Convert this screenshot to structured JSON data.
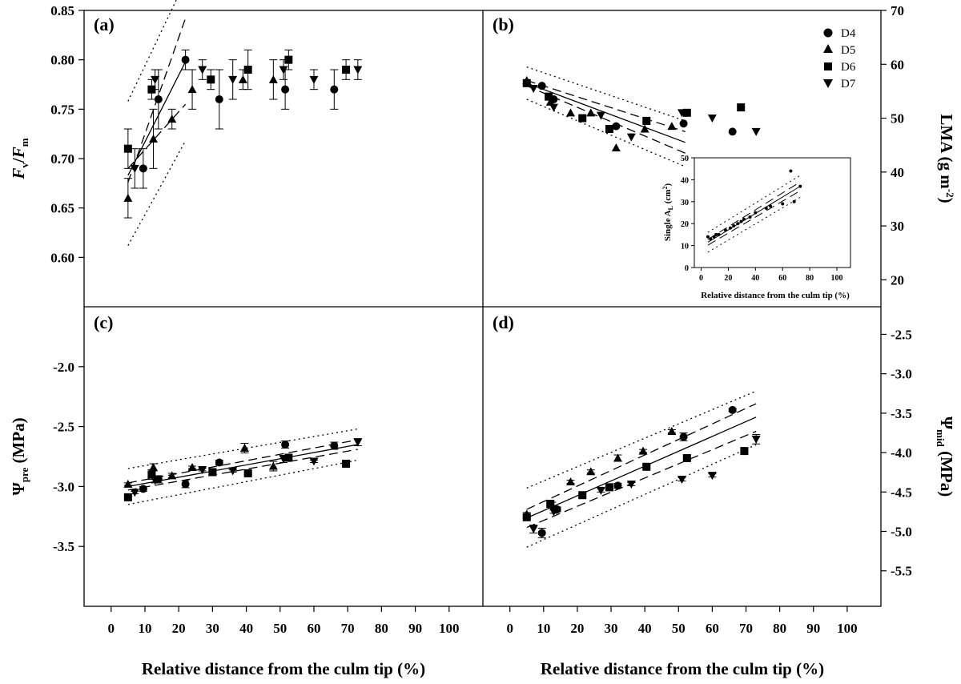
{
  "figure": {
    "x_axis_title": "Relative distance from the culm tip (%)",
    "x_ticks": [
      "0",
      "10",
      "20",
      "30",
      "40",
      "50",
      "60",
      "70",
      "80",
      "90",
      "100"
    ]
  },
  "panels": {
    "a": {
      "tag": "(a)"
    },
    "b": {
      "tag": "(b)"
    },
    "c": {
      "tag": "(c)"
    },
    "d": {
      "tag": "(d)"
    }
  },
  "legend": {
    "entries": [
      "D4",
      "D5",
      "D6",
      "D7"
    ],
    "placement": "top-right of panel (b)"
  },
  "chart_data": [
    {
      "panel": "a",
      "type": "scatter",
      "ylabel": {
        "main": "F",
        "sub": "v",
        "mid": "/",
        "main2": "F",
        "sub2": "m"
      },
      "xlim": [
        -8,
        110
      ],
      "ylim": [
        0.55,
        0.85
      ],
      "y_ticks": [
        "0.60",
        "0.65",
        "0.70",
        "0.75",
        "0.80",
        "0.85"
      ],
      "series": [
        {
          "name": "D4",
          "marker": "circle",
          "points": [
            [
              9.5,
              0.69,
              0.02
            ],
            [
              14,
              0.76,
              0.03
            ],
            [
              22,
              0.8,
              0.01
            ],
            [
              32,
              0.76,
              0.03
            ],
            [
              51.5,
              0.77,
              0.02
            ],
            [
              66,
              0.77,
              0.02
            ]
          ]
        },
        {
          "name": "D5",
          "marker": "triangle-up",
          "points": [
            [
              5,
              0.66,
              0.02
            ],
            [
              12.5,
              0.72,
              0.03
            ],
            [
              18,
              0.74,
              0.01
            ],
            [
              24,
              0.77,
              0.02
            ],
            [
              39,
              0.78,
              0.01
            ],
            [
              48,
              0.78,
              0.02
            ]
          ]
        },
        {
          "name": "D6",
          "marker": "square",
          "points": [
            [
              5,
              0.71,
              0.02
            ],
            [
              12,
              0.77,
              0.01
            ],
            [
              29.5,
              0.78,
              0.01
            ],
            [
              40.5,
              0.79,
              0.02
            ],
            [
              52.5,
              0.8,
              0.01
            ],
            [
              69.5,
              0.79,
              0.01
            ]
          ]
        },
        {
          "name": "D7",
          "marker": "triangle-down",
          "points": [
            [
              7,
              0.69,
              0.02
            ],
            [
              13,
              0.78,
              0.01
            ],
            [
              27,
              0.79,
              0.01
            ],
            [
              36,
              0.78,
              0.02
            ],
            [
              51,
              0.79,
              0.01
            ],
            [
              60,
              0.78,
              0.01
            ],
            [
              73,
              0.79,
              0.01
            ]
          ]
        }
      ],
      "fit": {
        "x": [
          5,
          22
        ],
        "y": [
          0.683,
          0.798
        ],
        "ci": [
          [
            0.69,
            0.755
          ],
          [
            0.676,
            0.842
          ]
        ],
        "pi": [
          [
            0.612,
            0.718
          ],
          [
            0.758,
            0.88
          ]
        ]
      }
    },
    {
      "panel": "b",
      "type": "scatter",
      "ylabel": {
        "main": "LMA (g m",
        "sup": "-2",
        "end": ")"
      },
      "y_side": "right",
      "xlim": [
        -8,
        110
      ],
      "ylim": [
        15,
        70
      ],
      "y_ticks": [
        "20",
        "30",
        "40",
        "50",
        "60",
        "70"
      ],
      "series": [
        {
          "name": "D4",
          "marker": "circle",
          "points": [
            [
              9.5,
              56
            ],
            [
              13,
              53.5
            ],
            [
              31.5,
              48.5
            ],
            [
              51.5,
              49
            ],
            [
              66,
              47.5
            ]
          ]
        },
        {
          "name": "D5",
          "marker": "triangle-up",
          "points": [
            [
              5,
              57
            ],
            [
              12,
              53
            ],
            [
              18,
              51
            ],
            [
              24,
              51
            ],
            [
              31.5,
              44.5
            ],
            [
              40,
              48
            ],
            [
              48,
              48.5
            ]
          ]
        },
        {
          "name": "D6",
          "marker": "square",
          "points": [
            [
              5,
              56.5
            ],
            [
              11.5,
              54
            ],
            [
              21.5,
              50
            ],
            [
              29.5,
              48
            ],
            [
              40.5,
              49.5
            ],
            [
              52.5,
              51
            ],
            [
              68.5,
              52
            ]
          ]
        },
        {
          "name": "D7",
          "marker": "triangle-down",
          "points": [
            [
              7,
              55.5
            ],
            [
              13,
              52
            ],
            [
              27,
              50.5
            ],
            [
              36,
              46.5
            ],
            [
              51,
              51
            ],
            [
              60,
              50
            ],
            [
              73,
              47.5
            ]
          ]
        }
      ],
      "fit": {
        "x": [
          5,
          52
        ],
        "y": [
          56.5,
          45.5
        ],
        "ci": [
          [
            57.0,
            47.5
          ],
          [
            56.0,
            43.5
          ]
        ],
        "pi": [
          [
            59.5,
            49.5
          ],
          [
            53.5,
            41.0
          ]
        ]
      },
      "inset": {
        "xlabel": "Relative distance from the culm tip (%)",
        "ylabel": {
          "main": "Single A",
          "sub": "L",
          "mid": " (cm",
          "sup": "2",
          "end": ")"
        },
        "x_ticks": [
          "0",
          "20",
          "40",
          "60",
          "80",
          "100"
        ],
        "y_ticks": [
          "0",
          "10",
          "20",
          "30",
          "40",
          "50"
        ],
        "xlim": [
          -5,
          110
        ],
        "ylim": [
          0,
          50
        ],
        "points": [
          [
            5,
            14
          ],
          [
            7,
            13
          ],
          [
            9.5,
            14
          ],
          [
            11,
            15
          ],
          [
            13,
            15
          ],
          [
            18,
            17
          ],
          [
            21.5,
            18
          ],
          [
            24,
            19
          ],
          [
            27,
            20
          ],
          [
            29.5,
            21
          ],
          [
            31.5,
            22
          ],
          [
            36,
            23
          ],
          [
            40,
            25
          ],
          [
            48,
            27
          ],
          [
            51,
            28
          ],
          [
            60,
            29
          ],
          [
            66,
            44
          ],
          [
            68.5,
            30
          ],
          [
            73,
            37
          ]
        ],
        "fit": {
          "x": [
            5,
            73
          ],
          "y": [
            11.5,
            37
          ],
          "ci": [
            [
              12.8,
              39
            ],
            [
              10.2,
              35
            ]
          ],
          "pi": [
            [
              16,
              42
            ],
            [
              7,
              32
            ]
          ]
        }
      }
    },
    {
      "panel": "c",
      "type": "scatter",
      "ylabel": {
        "main": "Ψ",
        "sub": "pre",
        "end": " (MPa)"
      },
      "xlim": [
        -8,
        110
      ],
      "ylim": [
        -4.0,
        -1.5
      ],
      "y_ticks": [
        "-2.0",
        "-2.5",
        "-3.0",
        "-3.5"
      ],
      "series": [
        {
          "name": "D4",
          "marker": "circle",
          "points": [
            [
              9.5,
              -3.02,
              0.02
            ],
            [
              14,
              -2.94,
              0.03
            ],
            [
              22,
              -2.98,
              0.03
            ],
            [
              32,
              -2.8,
              0.02
            ],
            [
              51.5,
              -2.65,
              0.03
            ],
            [
              66,
              -2.66,
              0.03
            ]
          ]
        },
        {
          "name": "D5",
          "marker": "triangle-up",
          "points": [
            [
              5,
              -2.98,
              0.01
            ],
            [
              12.5,
              -2.84,
              0.03
            ],
            [
              18,
              -2.91,
              0.02
            ],
            [
              24,
              -2.84,
              0.01
            ],
            [
              39.5,
              -2.68,
              0.04
            ],
            [
              48,
              -2.83,
              0.04
            ]
          ]
        },
        {
          "name": "D6",
          "marker": "square",
          "points": [
            [
              5,
              -3.09,
              0.02
            ],
            [
              12,
              -2.9,
              0.04
            ],
            [
              30,
              -2.88,
              0.02
            ],
            [
              40.5,
              -2.89,
              0.01
            ],
            [
              52.5,
              -2.76,
              0.02
            ],
            [
              69.5,
              -2.81,
              0.02
            ]
          ]
        },
        {
          "name": "D7",
          "marker": "triangle-down",
          "points": [
            [
              7,
              -3.05,
              0.01
            ],
            [
              13,
              -2.95,
              0.02
            ],
            [
              27,
              -2.86,
              0.01
            ],
            [
              36,
              -2.87,
              0.01
            ],
            [
              51,
              -2.77,
              0.03
            ],
            [
              60,
              -2.79,
              0.01
            ],
            [
              73,
              -2.63,
              0.03
            ]
          ]
        }
      ],
      "fit": {
        "x": [
          5,
          73
        ],
        "y": [
          -3.0,
          -2.65
        ],
        "ci": [
          [
            -2.97,
            -2.61
          ],
          [
            -3.03,
            -2.69
          ]
        ],
        "pi": [
          [
            -2.85,
            -2.52
          ],
          [
            -3.15,
            -2.78
          ]
        ]
      }
    },
    {
      "panel": "d",
      "type": "scatter",
      "ylabel": {
        "main": "Ψ",
        "sub": "mid",
        "end": " (MPa)"
      },
      "y_side": "right",
      "xlim": [
        -8,
        110
      ],
      "ylim": [
        -5.95,
        -2.15
      ],
      "y_ticks": [
        "-2.5",
        "-3.0",
        "-3.5",
        "-4.0",
        "-4.5",
        "-5.0",
        "-5.5"
      ],
      "series": [
        {
          "name": "D4",
          "marker": "circle",
          "points": [
            [
              9.5,
              -5.02,
              0.06
            ],
            [
              14,
              -4.72,
              0.03
            ],
            [
              32,
              -4.42,
              0.03
            ],
            [
              51.5,
              -3.8,
              0.05
            ],
            [
              66,
              -3.46,
              0.02
            ]
          ]
        },
        {
          "name": "D5",
          "marker": "triangle-up",
          "points": [
            [
              5,
              -4.78,
              0.02
            ],
            [
              12.5,
              -4.66,
              0.03
            ],
            [
              18,
              -4.37,
              0.02
            ],
            [
              24,
              -4.24,
              0.02
            ],
            [
              32,
              -4.07,
              0.04
            ],
            [
              39.5,
              -3.98,
              0.02
            ],
            [
              48,
              -3.73,
              0.02
            ]
          ]
        },
        {
          "name": "D6",
          "marker": "square",
          "points": [
            [
              5,
              -4.82,
              0.02
            ],
            [
              12,
              -4.65,
              0.03
            ],
            [
              21.5,
              -4.54,
              0.02
            ],
            [
              29.5,
              -4.44,
              0.02
            ],
            [
              40.5,
              -4.18,
              0.02
            ],
            [
              52.5,
              -4.07,
              0.02
            ],
            [
              69.5,
              -3.98,
              0.02
            ]
          ]
        },
        {
          "name": "D7",
          "marker": "triangle-down",
          "points": [
            [
              7,
              -4.97,
              0.05
            ],
            [
              13,
              -4.75,
              0.02
            ],
            [
              27,
              -4.48,
              0.02
            ],
            [
              36,
              -4.4,
              0.02
            ],
            [
              51,
              -4.34,
              0.02
            ],
            [
              60,
              -4.29,
              0.02
            ],
            [
              73,
              -3.83,
              0.06
            ]
          ]
        }
      ],
      "fit": {
        "x": [
          5,
          73
        ],
        "y": [
          -4.83,
          -3.55
        ],
        "ci": [
          [
            -4.72,
            -3.38
          ],
          [
            -4.95,
            -3.73
          ]
        ],
        "pi": [
          [
            -4.45,
            -3.22
          ],
          [
            -5.2,
            -3.9
          ]
        ]
      }
    }
  ]
}
